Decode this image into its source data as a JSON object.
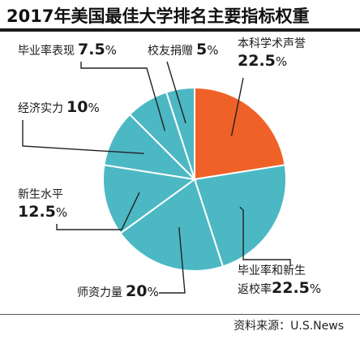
{
  "chart_data": {
    "type": "pie",
    "title": "2017年美国最佳大学排名主要指标权重",
    "slices": [
      {
        "label": "本科学术声誉",
        "label_lines": [
          "本科学术声誉"
        ],
        "value": 22.5,
        "color": "#f06127"
      },
      {
        "label": "毕业率和新生返校率",
        "label_lines": [
          "毕业率和新生",
          "返校率"
        ],
        "value": 22.5,
        "color": "#4cb8c4"
      },
      {
        "label": "师资力量",
        "label_lines": [
          "师资力量"
        ],
        "value": 20,
        "color": "#4cb8c4"
      },
      {
        "label": "新生水平",
        "label_lines": [
          "新生水平"
        ],
        "value": 12.5,
        "color": "#4cb8c4"
      },
      {
        "label": "经济实力",
        "label_lines": [
          "经济实力"
        ],
        "value": 10,
        "color": "#4cb8c4"
      },
      {
        "label": "毕业率表现",
        "label_lines": [
          "毕业率表现"
        ],
        "value": 7.5,
        "color": "#4cb8c4"
      },
      {
        "label": "校友捐赠",
        "label_lines": [
          "校友捐赠"
        ],
        "value": 5,
        "color": "#4cb8c4"
      }
    ],
    "unit": "%",
    "slice_border_color": "#ffffff",
    "leader_line_color": "#222222"
  },
  "source": "资料来源：U.S.News"
}
